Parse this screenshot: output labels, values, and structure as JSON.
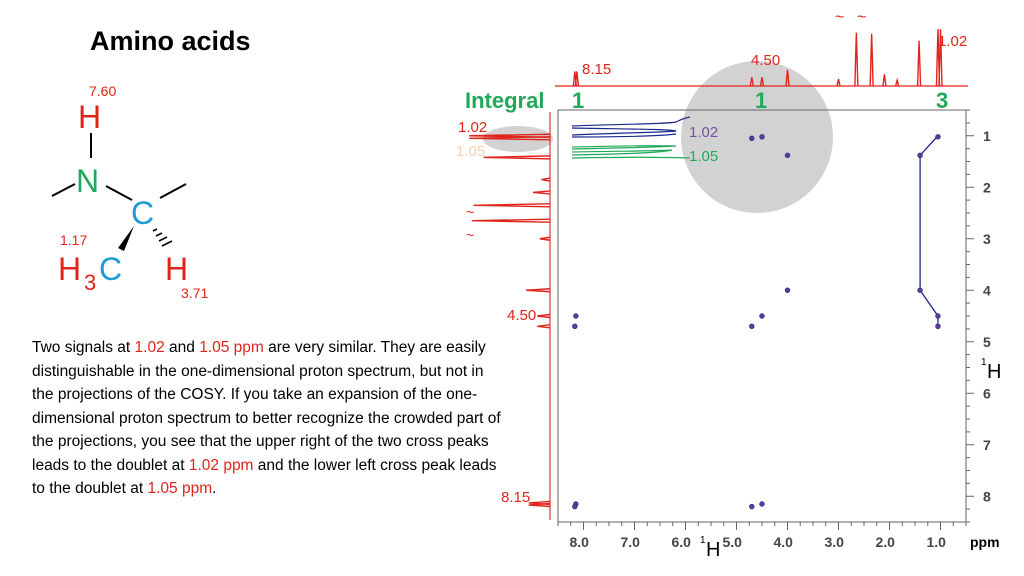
{
  "slide": {
    "title": "Amino acids",
    "explanation": [
      {
        "text": "Two signals at ",
        "highlight": false
      },
      {
        "text": "1.02",
        "highlight": true
      },
      {
        "text": " and ",
        "highlight": false
      },
      {
        "text": "1.05 ppm",
        "highlight": true
      },
      {
        "text": " are very similar. They are easily distinguishable in the one-dimensional proton spectrum, but not in the projections of the COSY. If you take an expansion of the one-dimensional proton spectrum to better recognize the crowded part of the projections, you see that the upper right of the two cross peaks leads to the doublet at ",
        "highlight": false
      },
      {
        "text": "1.02 ppm",
        "highlight": true
      },
      {
        "text": " and the lower left cross peak leads to the doublet at ",
        "highlight": false
      },
      {
        "text": "1.05 ppm",
        "highlight": true
      },
      {
        "text": ".",
        "highlight": false
      }
    ]
  },
  "molecule": {
    "atoms": {
      "h_top": "H",
      "n": "N",
      "c": "C",
      "ch3_h": "H",
      "ch3_sub": "3",
      "ch3_c": "C",
      "h_right": "H"
    },
    "shift_labels": {
      "nh": "7.60",
      "ch3": "1.17",
      "ch": "3.71"
    }
  },
  "colors": {
    "red": "#e0241b",
    "green": "#22a85a",
    "blue": "#1c9bd8",
    "navy": "#1a2a8c",
    "purple": "#7a4fa8",
    "gray": "#d2d2d2"
  },
  "spectrum": {
    "integral_label": "Integral",
    "integrals": [
      "1",
      "1",
      "3"
    ],
    "top_peak_labels": [
      "8.15",
      "4.50",
      "1.02"
    ],
    "left_peak_labels": [
      "1.02",
      "1.05",
      "4.50",
      "8.15"
    ],
    "expansion_labels": [
      "1.02",
      "1.05"
    ],
    "x_axis_unit": "ppm",
    "x_axis_nucleus": "1H",
    "y_axis_nucleus": "1H",
    "tilde": "~"
  },
  "chart_data": {
    "type": "scatter",
    "subtype": "2D COSY NMR spectrum",
    "x_axis": {
      "label": "1H",
      "unit": "ppm",
      "range": [
        8.5,
        0.5
      ],
      "ticks": [
        8.0,
        7.0,
        6.0,
        5.0,
        4.0,
        3.0,
        2.0,
        1.0
      ],
      "tick_labels": [
        "8.0",
        "7.0",
        "6.0",
        "5.0",
        "4.0",
        "3.0",
        "2.0",
        "1.0"
      ]
    },
    "y_axis": {
      "label": "1H",
      "unit": "ppm",
      "range": [
        0.5,
        8.5
      ],
      "ticks": [
        1,
        2,
        3,
        4,
        5,
        6,
        7,
        8
      ],
      "tick_labels": [
        "1",
        "2",
        "3",
        "4",
        "5",
        "6",
        "7",
        "8"
      ]
    },
    "cross_peaks": [
      {
        "x": 8.15,
        "y": 4.5
      },
      {
        "x": 8.17,
        "y": 4.7
      },
      {
        "x": 8.15,
        "y": 8.15
      },
      {
        "x": 8.17,
        "y": 8.2
      },
      {
        "x": 4.7,
        "y": 1.05
      },
      {
        "x": 4.5,
        "y": 1.02
      },
      {
        "x": 4.0,
        "y": 1.38
      },
      {
        "x": 4.7,
        "y": 4.7
      },
      {
        "x": 4.5,
        "y": 4.5
      },
      {
        "x": 4.0,
        "y": 4.0
      },
      {
        "x": 4.7,
        "y": 8.2
      },
      {
        "x": 4.5,
        "y": 8.15
      },
      {
        "x": 1.4,
        "y": 1.38
      },
      {
        "x": 1.05,
        "y": 1.02
      },
      {
        "x": 1.4,
        "y": 4.0
      },
      {
        "x": 1.05,
        "y": 4.5
      },
      {
        "x": 1.05,
        "y": 4.7
      }
    ],
    "diagonal_trace": [
      {
        "x": 1.05,
        "y": 1.0
      },
      {
        "x": 1.4,
        "y": 1.38
      },
      {
        "x": 1.4,
        "y": 4.0
      },
      {
        "x": 1.05,
        "y": 4.5
      },
      {
        "x": 1.05,
        "y": 4.72
      }
    ],
    "projection_peaks": [
      {
        "ppm": 8.17,
        "height": 0.25
      },
      {
        "ppm": 8.13,
        "height": 0.25
      },
      {
        "ppm": 4.7,
        "height": 0.15
      },
      {
        "ppm": 4.5,
        "height": 0.15
      },
      {
        "ppm": 4.0,
        "height": 0.28
      },
      {
        "ppm": 3.0,
        "height": 0.12
      },
      {
        "ppm": 2.65,
        "height": 0.92
      },
      {
        "ppm": 2.35,
        "height": 0.9
      },
      {
        "ppm": 2.1,
        "height": 0.2
      },
      {
        "ppm": 1.85,
        "height": 0.1
      },
      {
        "ppm": 1.42,
        "height": 0.78
      },
      {
        "ppm": 1.05,
        "height": 0.98
      },
      {
        "ppm": 1.0,
        "height": 0.98
      }
    ],
    "grid": false
  }
}
